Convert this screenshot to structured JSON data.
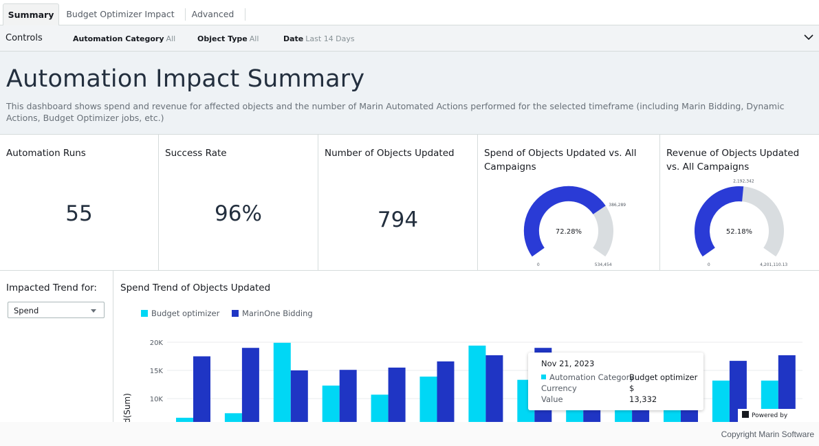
{
  "tabs": [
    {
      "label": "Summary",
      "active": true
    },
    {
      "label": "Budget Optimizer Impact",
      "active": false
    },
    {
      "label": "Advanced",
      "active": false
    }
  ],
  "controls": {
    "title": "Controls",
    "filters": [
      {
        "label": "Automation Category",
        "value": "All"
      },
      {
        "label": "Object Type",
        "value": "All"
      },
      {
        "label": "Date",
        "value": "Last 14 Days"
      }
    ],
    "expand_icon": "chevron-down-icon"
  },
  "header": {
    "title": "Automation Impact Summary",
    "description": "This dashboard shows spend and revenue for affected objects and the number of Marin Automated Actions performed for the selected timeframe (including Marin Bidding, Dynamic Actions, Budget Optimizer jobs, etc.)"
  },
  "kpis": [
    {
      "title": "Automation Runs",
      "value": "55"
    },
    {
      "title": "Success Rate",
      "value": "96%"
    },
    {
      "title": "Number of Objects Updated",
      "value": "794"
    }
  ],
  "gauges": [
    {
      "title": "Spend of Objects Updated vs. All Campaigns",
      "percent_label": "72.28%",
      "fraction": 0.7228,
      "min_label": "0",
      "max_label": "534,454",
      "value_label": "386,289"
    },
    {
      "title": "Revenue of Objects Updated vs. All Campaigns",
      "percent_label": "52.18%",
      "fraction": 0.5218,
      "min_label": "0",
      "max_label": "4,201,110.13",
      "value_label": "2,192,342"
    }
  ],
  "trend_control": {
    "label": "Impacted Trend for:",
    "selected": "Spend"
  },
  "colors": {
    "budget_optimizer": "#00d7f5",
    "marinone_bidding": "#1f35c4",
    "gauge_track": "#d9dde0",
    "gauge_fill": "#2a3bd6"
  },
  "chart_data": {
    "type": "bar",
    "title": "Spend Trend of Objects Updated",
    "ylabel": "d(Sum)",
    "yticks": [
      "20K",
      "15K",
      "10K"
    ],
    "ytick_values": [
      20000,
      15000,
      10000
    ],
    "ylim": [
      5800,
      21500
    ],
    "grid": true,
    "legend_position": "top-left",
    "series": [
      {
        "name": "Budget optimizer",
        "values": [
          6600,
          7400,
          19900,
          12300,
          10700,
          13900,
          19400,
          13332,
          10200,
          10200,
          10200,
          13200,
          13200
        ]
      },
      {
        "name": "MarinOne Bidding",
        "values": [
          17500,
          19000,
          15000,
          15100,
          15500,
          16600,
          17700,
          19000,
          10200,
          10200,
          10200,
          16700,
          17700
        ]
      }
    ]
  },
  "tooltip": {
    "date": "Nov 21, 2023",
    "rows": [
      {
        "key": "Automation Category",
        "value": "Budget optimizer"
      },
      {
        "key": "Currency",
        "value": "$"
      },
      {
        "key": "Value",
        "value": "13,332"
      }
    ]
  },
  "powered_by": "Powered by QuickSight",
  "footer": {
    "copyright": "Copyright Marin Software"
  }
}
